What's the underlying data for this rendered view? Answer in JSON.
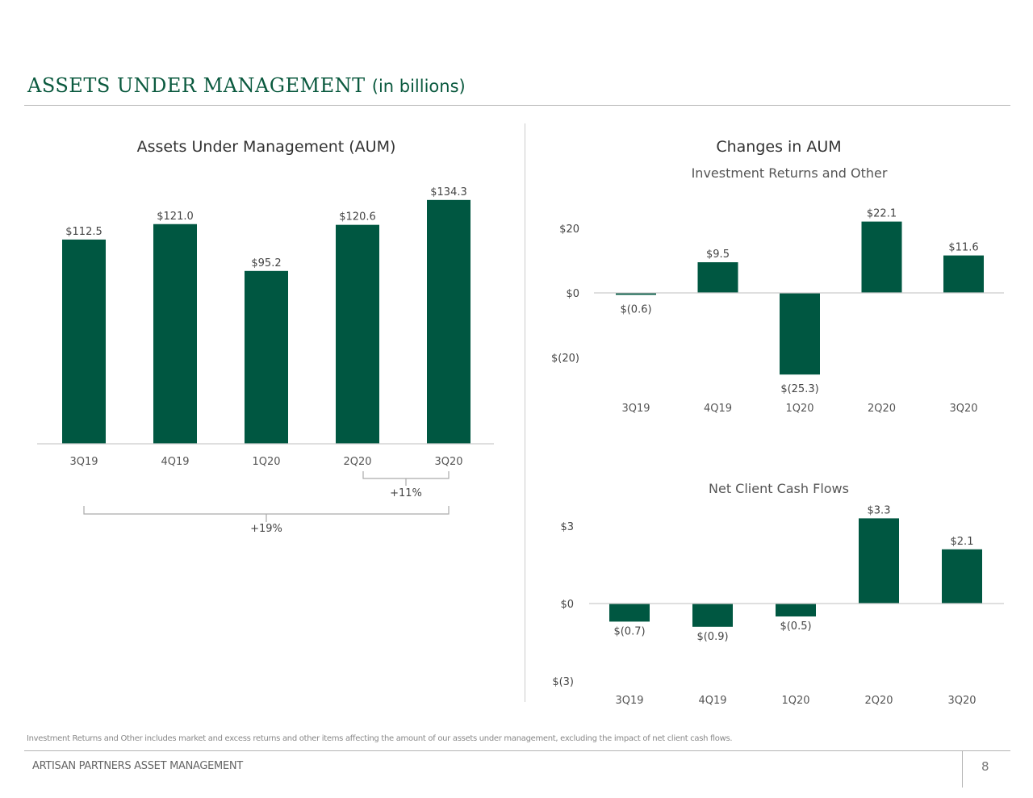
{
  "header": {
    "title": "ASSETS UNDER MANAGEMENT",
    "subtitle": "(in billions)"
  },
  "footnote": "Investment Returns and Other includes market and excess returns and other items affecting the amount of our assets under management, excluding the impact of net client cash flows.",
  "footer": {
    "company": "ARTISAN PARTNERS ASSET MANAGEMENT",
    "page": "8"
  },
  "colors": {
    "bar": "#005741",
    "title": "#0b5a3f"
  },
  "changes_title": "Changes in AUM",
  "chart_data": [
    {
      "type": "bar",
      "title": "Assets Under Management (AUM)",
      "categories": [
        "3Q19",
        "4Q19",
        "1Q20",
        "2Q20",
        "3Q20"
      ],
      "values": [
        112.5,
        121.0,
        95.2,
        120.6,
        134.3
      ],
      "labels": [
        "$112.5",
        "$121.0",
        "$95.2",
        "$120.6",
        "$134.3"
      ],
      "ylim": [
        0,
        140
      ],
      "annotations": [
        {
          "from": "2Q20",
          "to": "3Q20",
          "text": "+11%"
        },
        {
          "from": "3Q19",
          "to": "3Q20",
          "text": "+19%"
        }
      ]
    },
    {
      "type": "bar",
      "title": "Investment Returns and Other",
      "categories": [
        "3Q19",
        "4Q19",
        "1Q20",
        "2Q20",
        "3Q20"
      ],
      "values": [
        -0.6,
        9.5,
        -25.3,
        22.1,
        11.6
      ],
      "labels": [
        "$(0.6)",
        "$9.5",
        "$(25.3)",
        "$22.1",
        "$11.6"
      ],
      "yticks": [
        20,
        0,
        -20
      ],
      "ytick_labels": [
        "$20",
        "$0",
        "$(20)"
      ],
      "ylim": [
        -30,
        30
      ]
    },
    {
      "type": "bar",
      "title": "Net Client Cash Flows",
      "categories": [
        "3Q19",
        "4Q19",
        "1Q20",
        "2Q20",
        "3Q20"
      ],
      "values": [
        -0.7,
        -0.9,
        -0.5,
        3.3,
        2.1
      ],
      "labels": [
        "$(0.7)",
        "$(0.9)",
        "$(0.5)",
        "$3.3",
        "$2.1"
      ],
      "yticks": [
        3,
        0,
        -3
      ],
      "ytick_labels": [
        "$3",
        "$0",
        "$(3)"
      ],
      "ylim": [
        -3,
        3.5
      ]
    }
  ]
}
